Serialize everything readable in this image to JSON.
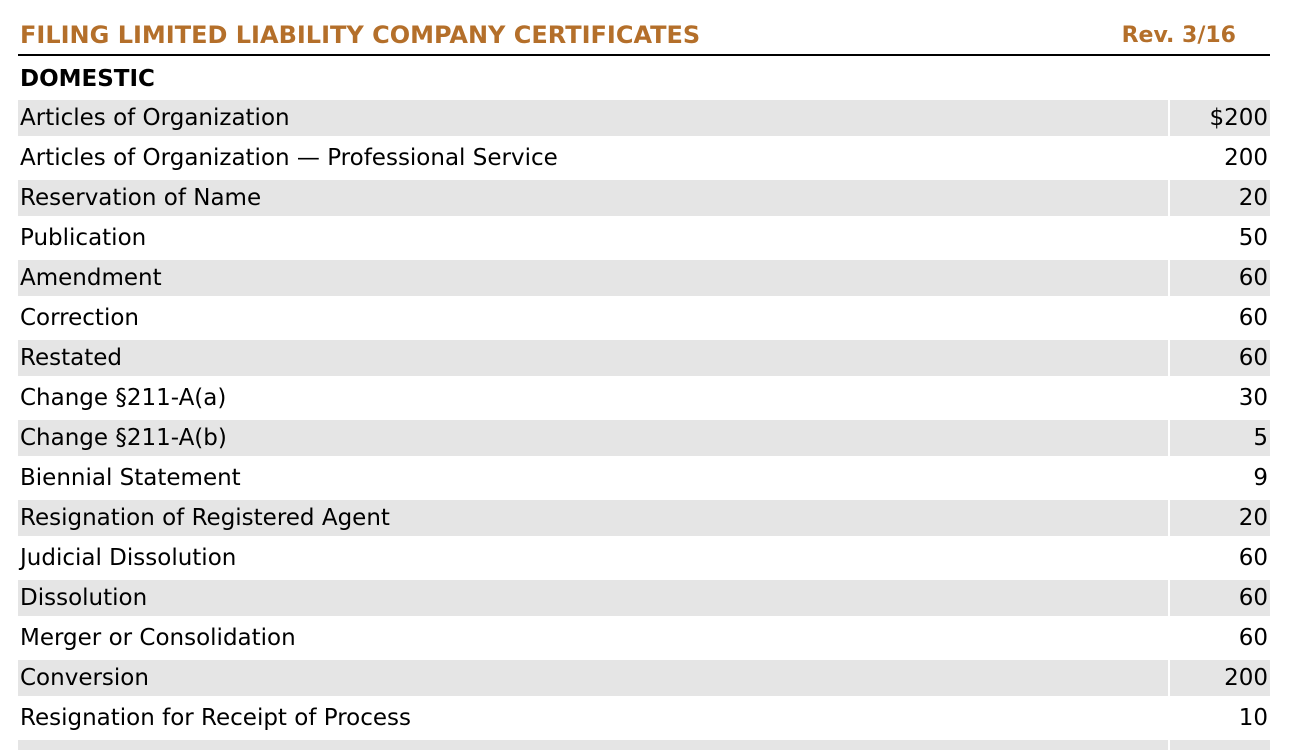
{
  "header": {
    "title": "FILING LIMITED LIABILITY COMPANY CERTIFICATES",
    "revision": "Rev. 3/16"
  },
  "colors": {
    "title": "#B46F2A",
    "row_shade": "#E5E5E5",
    "text": "#000000"
  },
  "section": {
    "title": "DOMESTIC"
  },
  "rows": [
    {
      "label": "Articles of Organization",
      "fee": "$200"
    },
    {
      "label": "Articles of Organization — Professional Service",
      "fee": "200"
    },
    {
      "label": "Reservation of Name",
      "fee": "20"
    },
    {
      "label": "Publication",
      "fee": "50"
    },
    {
      "label": "Amendment",
      "fee": "60"
    },
    {
      "label": "Correction",
      "fee": "60"
    },
    {
      "label": "Restated",
      "fee": "60"
    },
    {
      "label": "Change §211-A(a)",
      "fee": "30"
    },
    {
      "label": "Change §211-A(b)",
      "fee": "5"
    },
    {
      "label": "Biennial Statement",
      "fee": "9"
    },
    {
      "label": "Resignation of Registered Agent",
      "fee": "20"
    },
    {
      "label": "Judicial Dissolution",
      "fee": "60"
    },
    {
      "label": "Dissolution",
      "fee": "60"
    },
    {
      "label": "Merger or Consolidation",
      "fee": "60"
    },
    {
      "label": "Conversion",
      "fee": "200"
    },
    {
      "label": "Resignation for Receipt of Process",
      "fee": "10"
    }
  ]
}
